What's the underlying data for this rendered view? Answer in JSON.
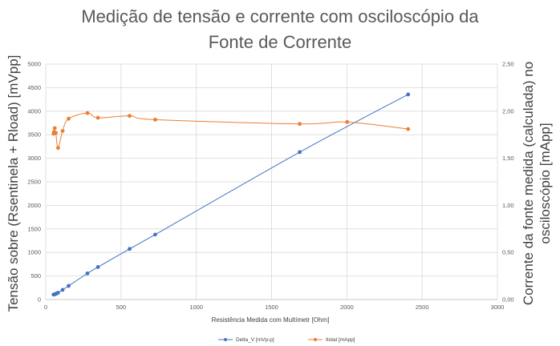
{
  "chart_data": {
    "type": "scatter",
    "title_line1": "Medição de tensão e corrente com osciloscópio da",
    "title_line2": "Fonte de Corrente",
    "xlabel": "Resistência Medida com Multímetr [Ohm]",
    "ylabel_left": "Tensão sobre (Rsentinela + Rload) [mVpp]",
    "ylabel_right_line1": "Corrente da fonte medida (calculada) no",
    "ylabel_right_line2": "osciloscópio [mApp]",
    "xlim": [
      0,
      3000
    ],
    "ylim_left": [
      0,
      5000
    ],
    "ylim_right": [
      0,
      2.5
    ],
    "x_ticks": [
      "0",
      "500",
      "1000",
      "1500",
      "2000",
      "2500",
      "3000"
    ],
    "y_left_ticks": [
      "0",
      "500",
      "1000",
      "1500",
      "2000",
      "2500",
      "3000",
      "3500",
      "4000",
      "4500",
      "5000"
    ],
    "y_right_ticks": [
      "0,00",
      "0,50",
      "1,00",
      "1,50",
      "2,00",
      "2,50"
    ],
    "grid": true,
    "legend_position": "bottom",
    "series": [
      {
        "name": "Delta_V [mVp-p]",
        "axis": "left",
        "color": "#4472c4",
        "points": [
          [
            52,
            105
          ],
          [
            57,
            110
          ],
          [
            62,
            115
          ],
          [
            67,
            120
          ],
          [
            72,
            128
          ],
          [
            82,
            145
          ],
          [
            112,
            205
          ],
          [
            152,
            290
          ],
          [
            277,
            555
          ],
          [
            347,
            690
          ],
          [
            557,
            1075
          ],
          [
            727,
            1380
          ],
          [
            1687,
            3130
          ],
          [
            2407,
            4355
          ]
        ]
      },
      {
        "name": "Itotal [mApp]",
        "axis": "right",
        "color": "#ed7d31",
        "points": [
          [
            52,
            1.76
          ],
          [
            55,
            1.78
          ],
          [
            57,
            1.77
          ],
          [
            60,
            1.82
          ],
          [
            62,
            1.77
          ],
          [
            67,
            1.77
          ],
          [
            82,
            1.61
          ],
          [
            112,
            1.79
          ],
          [
            152,
            1.92
          ],
          [
            277,
            1.98
          ],
          [
            347,
            1.93
          ],
          [
            557,
            1.95
          ],
          [
            727,
            1.91
          ],
          [
            1687,
            1.865
          ],
          [
            2002,
            1.885
          ],
          [
            2407,
            1.81
          ]
        ]
      }
    ]
  }
}
